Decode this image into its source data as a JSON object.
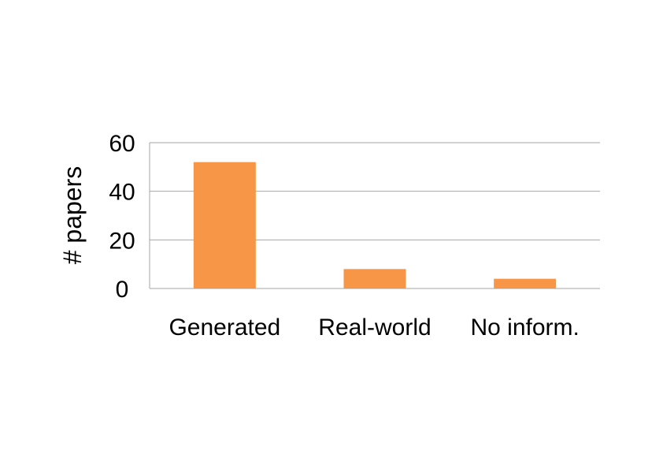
{
  "chart_data": {
    "type": "bar",
    "categories": [
      "Generated",
      "Real-world",
      "No inform."
    ],
    "values": [
      52,
      8,
      4
    ],
    "ylabel": "# papers",
    "ylim": [
      0,
      60
    ],
    "yticks": [
      0,
      20,
      40,
      60
    ],
    "grid": true,
    "legend": "none",
    "colors": {
      "bar": "#F79646",
      "grid": "#A6A6A6",
      "axis": "#A6A6A6"
    }
  }
}
